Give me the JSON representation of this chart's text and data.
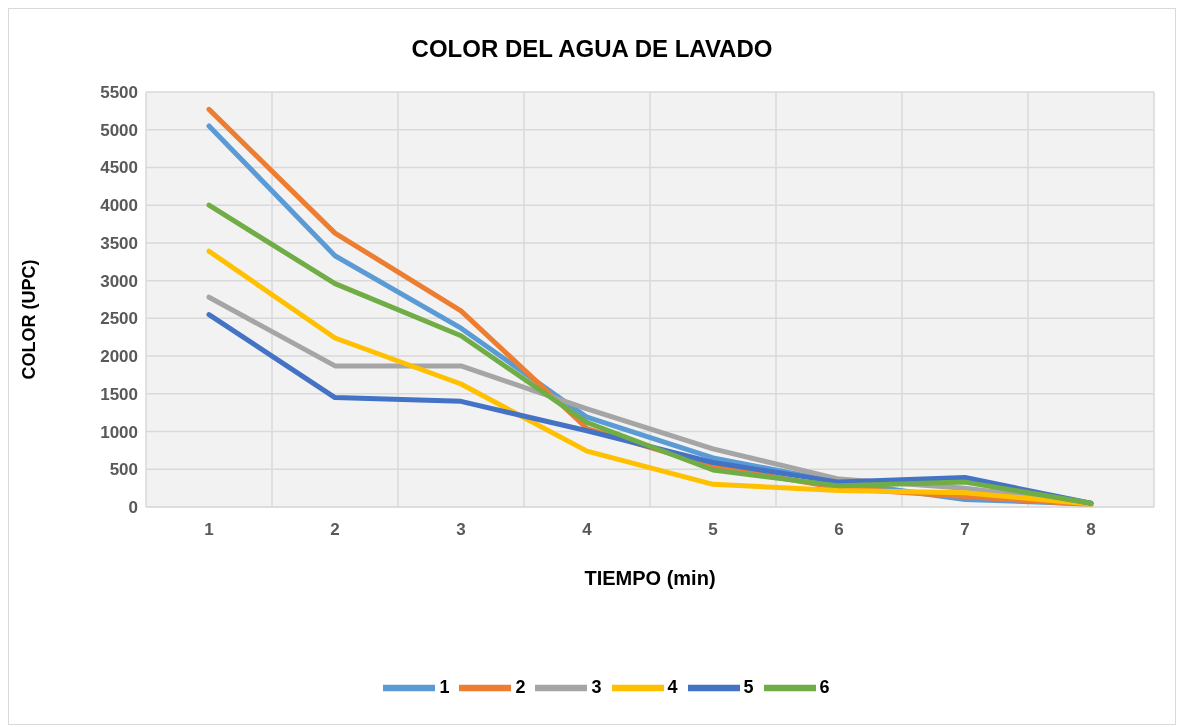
{
  "chart_data": {
    "type": "line",
    "title": "COLOR DEL AGUA DE LAVADO",
    "xlabel": "TIEMPO (min)",
    "ylabel": "COLOR (UPC)",
    "categories": [
      "1",
      "2",
      "3",
      "4",
      "5",
      "6",
      "7",
      "8"
    ],
    "series": [
      {
        "name": "1",
        "color": "#5b9bd5",
        "values": [
          5050,
          3330,
          2370,
          1190,
          650,
          330,
          100,
          40
        ]
      },
      {
        "name": "2",
        "color": "#ed7d31",
        "values": [
          5270,
          3630,
          2600,
          1040,
          540,
          250,
          140,
          30
        ]
      },
      {
        "name": "3",
        "color": "#a5a5a5",
        "values": [
          2780,
          1870,
          1870,
          1300,
          770,
          370,
          250,
          50
        ]
      },
      {
        "name": "4",
        "color": "#ffc000",
        "values": [
          3390,
          2240,
          1630,
          740,
          300,
          220,
          190,
          40
        ]
      },
      {
        "name": "5",
        "color": "#4472c4",
        "values": [
          2550,
          1450,
          1400,
          1010,
          590,
          330,
          390,
          50
        ]
      },
      {
        "name": "6",
        "color": "#70ad47",
        "values": [
          4000,
          2960,
          2270,
          1120,
          490,
          280,
          330,
          50
        ]
      }
    ],
    "ylim": [
      0,
      5500
    ],
    "yticks": [
      0,
      500,
      1000,
      1500,
      2000,
      2500,
      3000,
      3500,
      4000,
      4500,
      5000,
      5500
    ],
    "grid": true,
    "legend": "bottom",
    "marker": "none",
    "line_style": "solid"
  }
}
